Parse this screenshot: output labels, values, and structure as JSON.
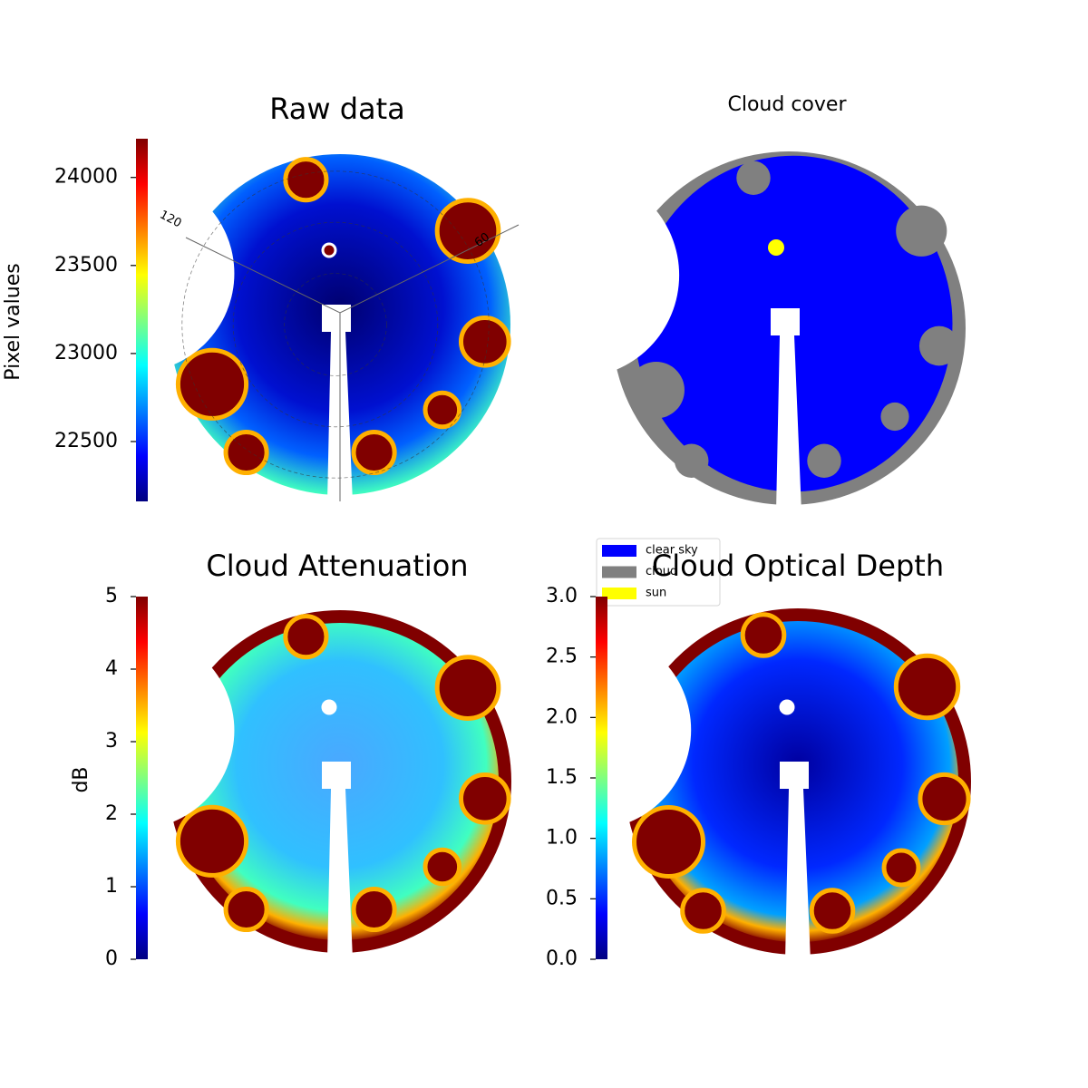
{
  "chart_data": [
    {
      "type": "image",
      "title": "Raw data",
      "ylabel": "Pixel values",
      "colormap": "jet",
      "ylim": [
        22160,
        24220
      ],
      "yticks": [
        22500,
        23000,
        23500,
        24000
      ],
      "annotations": [
        "120",
        "60"
      ]
    },
    {
      "type": "image",
      "title": "Cloud cover",
      "legend": [
        {
          "name": "clear sky",
          "color": "#0000ff"
        },
        {
          "name": "cloud",
          "color": "#808080"
        },
        {
          "name": "sun",
          "color": "#ffff00"
        }
      ]
    },
    {
      "type": "image",
      "title": "Cloud Attenuation",
      "ylabel": "dB",
      "colormap": "jet",
      "ylim": [
        0,
        5
      ],
      "yticks": [
        0,
        1,
        2,
        3,
        4,
        5
      ]
    },
    {
      "type": "image",
      "title": "Cloud Optical Depth",
      "colormap": "jet",
      "ylim": [
        0,
        3
      ],
      "yticks": [
        {
          "value": 0,
          "label": "0.0"
        },
        {
          "value": 0.5,
          "label": "0.5"
        },
        {
          "value": 1,
          "label": "1.0"
        },
        {
          "value": 1.5,
          "label": "1.5"
        },
        {
          "value": 2,
          "label": "2.0"
        },
        {
          "value": 2.5,
          "label": "2.5"
        },
        {
          "value": 3,
          "label": "3.0"
        }
      ]
    }
  ]
}
